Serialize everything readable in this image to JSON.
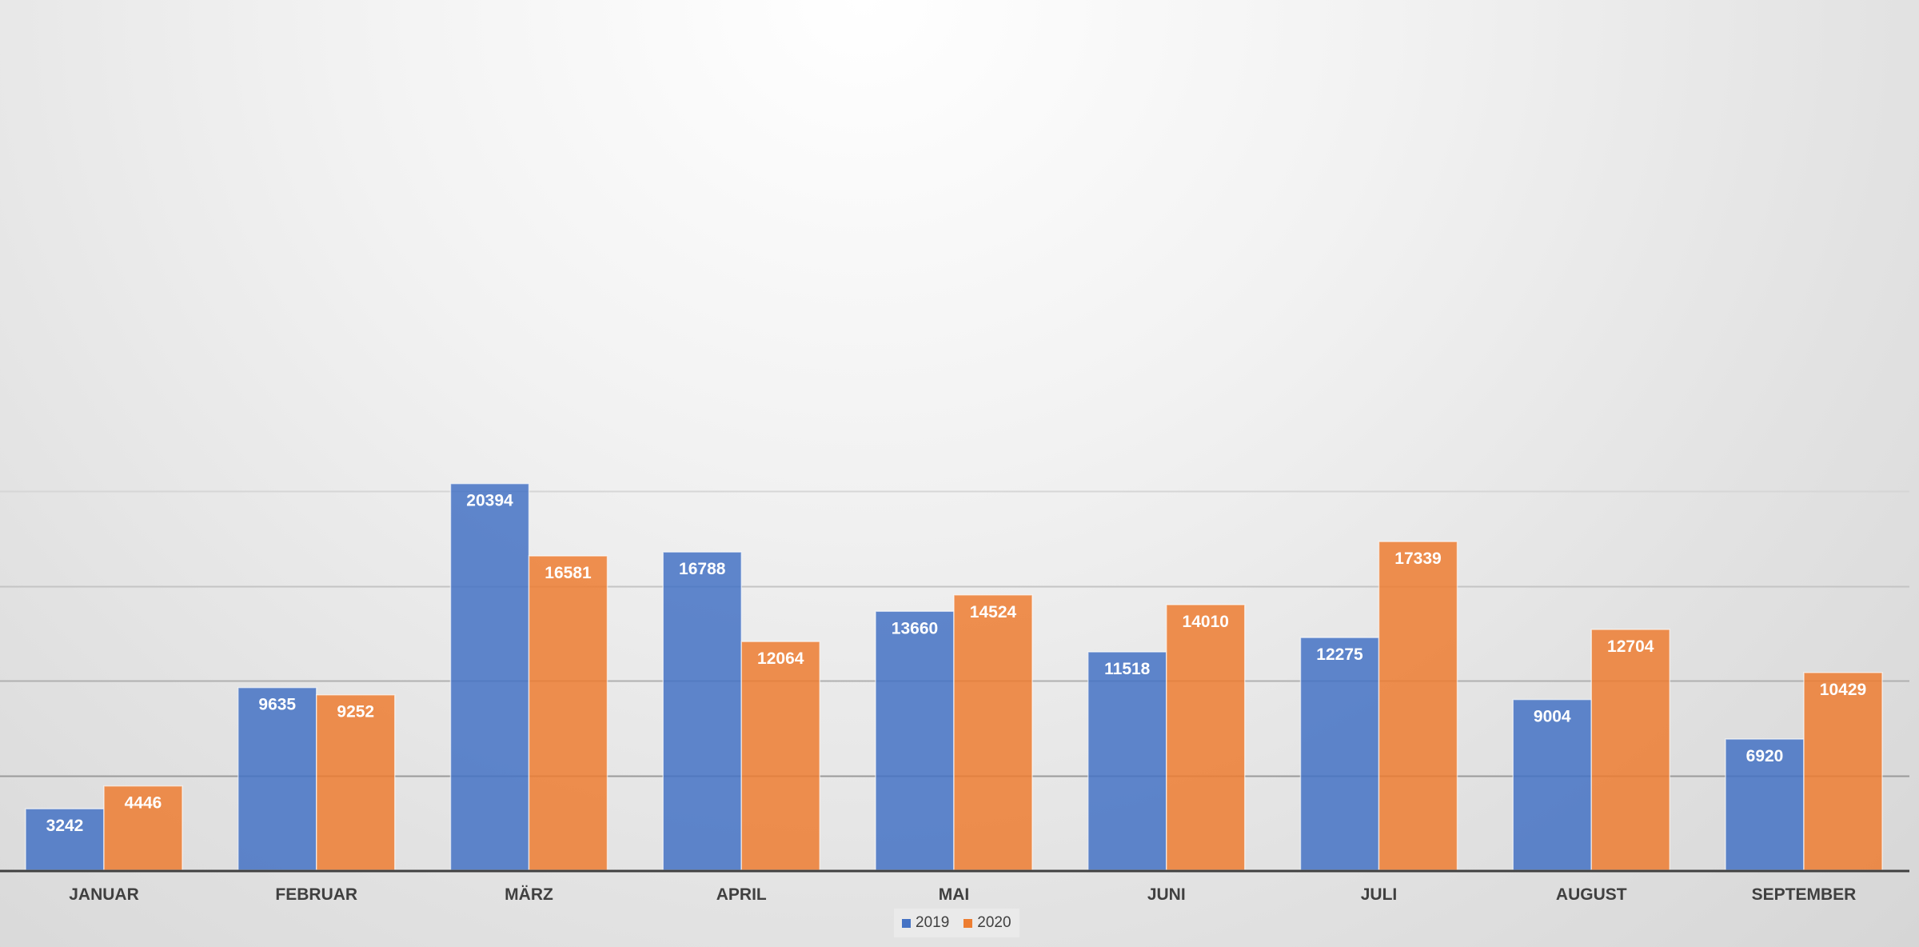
{
  "chart_data": {
    "type": "bar",
    "categories": [
      "JANUAR",
      "FEBRUAR",
      "MÄRZ",
      "APRIL",
      "MAI",
      "JUNI",
      "JULI",
      "AUGUST",
      "SEPTEMBER"
    ],
    "series": [
      {
        "name": "2019",
        "color": "#4472c4",
        "values": [
          3242,
          9635,
          20394,
          16788,
          13660,
          11518,
          12275,
          9004,
          6920
        ]
      },
      {
        "name": "2020",
        "color": "#ed7d31",
        "values": [
          4446,
          9252,
          16581,
          12064,
          14524,
          14010,
          17339,
          12704,
          10429
        ]
      }
    ],
    "ylim": [
      0,
      25000
    ],
    "y_gridlines": [
      5000,
      10000,
      15000,
      20000
    ],
    "grid": true,
    "data_labels": "inside-end",
    "legend": "bottom-center"
  }
}
